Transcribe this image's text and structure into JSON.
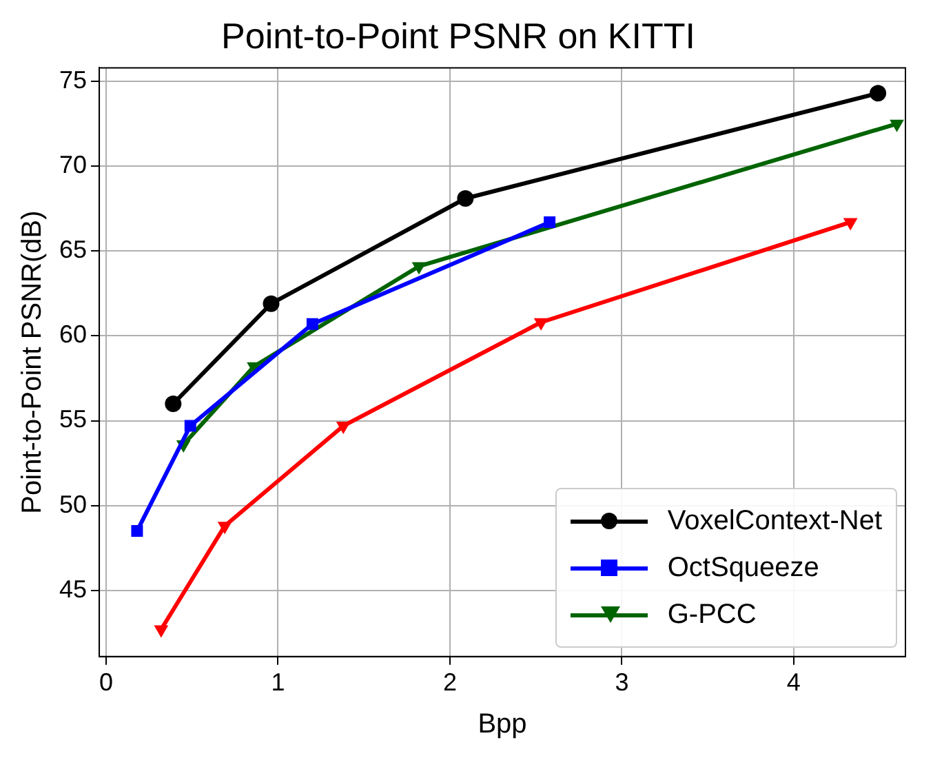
{
  "chart_data": {
    "type": "line",
    "title": "Point-to-Point PSNR on KITTI",
    "xlabel": "Bpp",
    "ylabel": "Point-to-Point PSNR(dB)",
    "xlim": [
      -0.04,
      4.65
    ],
    "xticks": [
      0,
      1,
      2,
      3,
      4
    ],
    "ylim": [
      41.1,
      75.8
    ],
    "yticks": [
      45,
      50,
      55,
      60,
      65,
      70,
      75
    ],
    "grid": true,
    "legend": "bottom right",
    "line_style": "solid",
    "series": [
      {
        "name": "VoxelContext-Net",
        "color": "#000000",
        "marker": "circle",
        "x": [
          0.39,
          0.96,
          2.09,
          4.49
        ],
        "values": [
          56.0,
          61.9,
          68.1,
          74.3
        ]
      },
      {
        "name": "OctSqueeze",
        "color": "#0000ff",
        "marker": "square",
        "x": [
          0.18,
          0.49,
          1.2,
          2.58
        ],
        "values": [
          48.5,
          54.7,
          60.7,
          66.7
        ]
      },
      {
        "name": "G-PCC",
        "color": "#006400",
        "marker": "triangle",
        "x": [
          0.45,
          0.86,
          1.82,
          4.6
        ],
        "values": [
          53.6,
          58.2,
          64.1,
          72.5
        ]
      },
      {
        "color": "#ff0000",
        "marker": "triangle",
        "x": [
          0.32,
          0.69,
          1.38,
          2.53,
          4.33
        ],
        "values": [
          42.7,
          48.8,
          54.7,
          60.8,
          66.7
        ]
      }
    ]
  }
}
